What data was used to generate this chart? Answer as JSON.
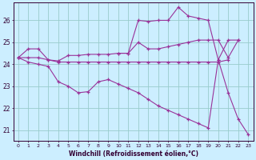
{
  "x": [
    0,
    1,
    2,
    3,
    4,
    5,
    6,
    7,
    8,
    9,
    10,
    11,
    12,
    13,
    14,
    15,
    16,
    17,
    18,
    19,
    20,
    21,
    22,
    23
  ],
  "line1_x": [
    0,
    1,
    2,
    3,
    4,
    5,
    6,
    7,
    8,
    9,
    10,
    11,
    12,
    13,
    14,
    15,
    16,
    17,
    18,
    19,
    20,
    21,
    22
  ],
  "line1_y": [
    24.3,
    24.7,
    24.7,
    24.2,
    24.15,
    24.4,
    24.4,
    24.45,
    24.45,
    24.45,
    24.5,
    24.5,
    25.0,
    24.7,
    24.7,
    24.8,
    24.9,
    25.0,
    25.1,
    25.1,
    25.1,
    24.3,
    25.1
  ],
  "line2_x": [
    0,
    1,
    2,
    3,
    4,
    5,
    6,
    7,
    8,
    9,
    10,
    11,
    12,
    13,
    14,
    15,
    16,
    17,
    18,
    19,
    20,
    21
  ],
  "line2_y": [
    24.3,
    24.3,
    24.3,
    24.2,
    24.1,
    24.1,
    24.1,
    24.1,
    24.1,
    24.1,
    24.1,
    24.1,
    24.1,
    24.1,
    24.1,
    24.1,
    24.1,
    24.1,
    24.1,
    24.1,
    24.1,
    24.2
  ],
  "line3_x": [
    0,
    1,
    2,
    3,
    4,
    5,
    6,
    7,
    8,
    9,
    10,
    11,
    12,
    13,
    14,
    15,
    16,
    17,
    18,
    19,
    20,
    21,
    22,
    23
  ],
  "line3_y": [
    24.3,
    24.1,
    24.0,
    23.9,
    23.2,
    23.0,
    22.7,
    22.75,
    23.2,
    23.3,
    23.1,
    22.9,
    22.7,
    22.4,
    22.1,
    21.9,
    21.7,
    21.5,
    21.3,
    21.1,
    24.2,
    22.7,
    21.5,
    20.8
  ],
  "line4_x": [
    10,
    11,
    12,
    13,
    14,
    15,
    16,
    17,
    18,
    19,
    20,
    21,
    22
  ],
  "line4_y": [
    24.5,
    24.5,
    26.0,
    25.95,
    26.0,
    26.0,
    26.6,
    26.2,
    26.1,
    26.0,
    24.2,
    25.1,
    25.1
  ],
  "ylim": [
    20.5,
    26.8
  ],
  "xlim": [
    -0.5,
    23.5
  ],
  "yticks": [
    21,
    22,
    23,
    24,
    25,
    26
  ],
  "xticks": [
    0,
    1,
    2,
    3,
    4,
    5,
    6,
    7,
    8,
    9,
    10,
    11,
    12,
    13,
    14,
    15,
    16,
    17,
    18,
    19,
    20,
    21,
    22,
    23
  ],
  "xlabel": "Windchill (Refroidissement éolien,°C)",
  "line_color": "#993399",
  "bg_color": "#cceeff",
  "grid_color": "#99cccc"
}
